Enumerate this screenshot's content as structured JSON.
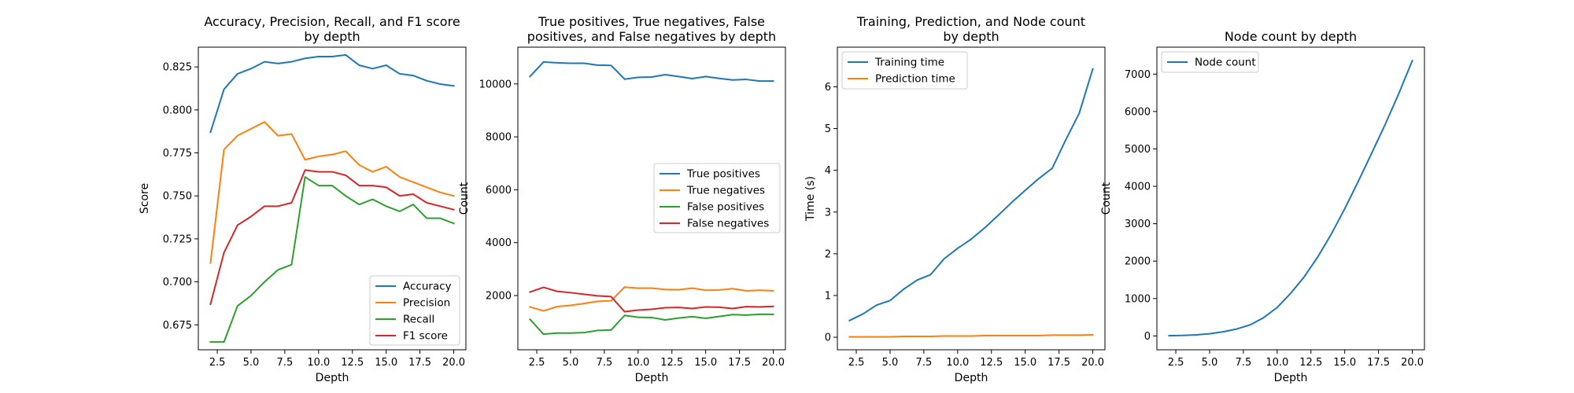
{
  "chart_data": [
    {
      "type": "line",
      "title": [
        "Accuracy, Precision, Recall, and F1 score",
        "by depth"
      ],
      "xlabel": "Depth",
      "ylabel": "Score",
      "xlim": [
        1.1,
        20.9
      ],
      "ylim": [
        0.6605,
        0.8365
      ],
      "xticks": [
        2.5,
        5.0,
        7.5,
        10.0,
        12.5,
        15.0,
        17.5,
        20.0
      ],
      "xtick_labels": [
        "2.5",
        "5.0",
        "7.5",
        "10.0",
        "12.5",
        "15.0",
        "17.5",
        "20.0"
      ],
      "yticks": [
        0.675,
        0.7,
        0.725,
        0.75,
        0.775,
        0.8,
        0.825
      ],
      "ytick_labels": [
        "0.675",
        "0.700",
        "0.725",
        "0.750",
        "0.775",
        "0.800",
        "0.825"
      ],
      "legend_position": "lower-right",
      "x": [
        2,
        3,
        4,
        5,
        6,
        7,
        8,
        9,
        10,
        11,
        12,
        13,
        14,
        15,
        16,
        17,
        18,
        19,
        20
      ],
      "series": [
        {
          "name": "Accuracy",
          "color": "#1f77b4",
          "values": [
            0.787,
            0.812,
            0.821,
            0.824,
            0.828,
            0.827,
            0.828,
            0.83,
            0.831,
            0.831,
            0.832,
            0.826,
            0.824,
            0.826,
            0.821,
            0.82,
            0.817,
            0.815,
            0.814
          ]
        },
        {
          "name": "Precision",
          "color": "#ff7f0e",
          "values": [
            0.711,
            0.777,
            0.785,
            0.789,
            0.793,
            0.785,
            0.786,
            0.771,
            0.773,
            0.774,
            0.776,
            0.768,
            0.764,
            0.767,
            0.761,
            0.758,
            0.755,
            0.752,
            0.75
          ]
        },
        {
          "name": "Recall",
          "color": "#2ca02c",
          "values": [
            0.665,
            0.665,
            0.686,
            0.692,
            0.7,
            0.707,
            0.71,
            0.761,
            0.756,
            0.756,
            0.75,
            0.745,
            0.748,
            0.744,
            0.741,
            0.745,
            0.737,
            0.737,
            0.734
          ]
        },
        {
          "name": "F1 score",
          "color": "#d62728",
          "values": [
            0.687,
            0.717,
            0.733,
            0.738,
            0.744,
            0.744,
            0.746,
            0.765,
            0.764,
            0.764,
            0.762,
            0.756,
            0.756,
            0.755,
            0.75,
            0.751,
            0.746,
            0.744,
            0.742
          ]
        }
      ]
    },
    {
      "type": "line",
      "title": [
        "True positives, True negatives, False",
        "positives, and False negatives by depth"
      ],
      "xlabel": "Depth",
      "ylabel": "Count",
      "xlim": [
        1.1,
        20.9
      ],
      "ylim": [
        -50,
        11390
      ],
      "xticks": [
        2.5,
        5.0,
        7.5,
        10.0,
        12.5,
        15.0,
        17.5,
        20.0
      ],
      "xtick_labels": [
        "2.5",
        "5.0",
        "7.5",
        "10.0",
        "12.5",
        "15.0",
        "17.5",
        "20.0"
      ],
      "yticks": [
        2000,
        4000,
        6000,
        8000,
        10000
      ],
      "ytick_labels": [
        "2000",
        "4000",
        "6000",
        "8000",
        "10000"
      ],
      "legend_position": "center-right",
      "x": [
        2,
        3,
        4,
        5,
        6,
        7,
        8,
        9,
        10,
        11,
        12,
        13,
        14,
        15,
        16,
        17,
        18,
        19,
        20
      ],
      "series": [
        {
          "name": "True positives",
          "color": "#1f77b4",
          "values": [
            10280,
            10830,
            10800,
            10780,
            10780,
            10710,
            10700,
            10180,
            10250,
            10260,
            10350,
            10280,
            10200,
            10280,
            10210,
            10150,
            10170,
            10110,
            10110
          ]
        },
        {
          "name": "True negatives",
          "color": "#ff7f0e",
          "values": [
            1570,
            1420,
            1580,
            1630,
            1700,
            1780,
            1800,
            2320,
            2280,
            2280,
            2230,
            2220,
            2280,
            2200,
            2210,
            2260,
            2180,
            2200,
            2180
          ]
        },
        {
          "name": "False positives",
          "color": "#2ca02c",
          "values": [
            1100,
            540,
            580,
            580,
            600,
            680,
            700,
            1250,
            1180,
            1170,
            1080,
            1150,
            1200,
            1140,
            1210,
            1280,
            1260,
            1290,
            1290
          ]
        },
        {
          "name": "False negatives",
          "color": "#d62728",
          "values": [
            2130,
            2310,
            2160,
            2110,
            2050,
            1990,
            1960,
            1390,
            1450,
            1480,
            1540,
            1550,
            1510,
            1570,
            1560,
            1510,
            1580,
            1570,
            1590
          ]
        }
      ]
    },
    {
      "type": "line",
      "title": [
        "Training, Prediction, and Node count",
        "by depth"
      ],
      "xlabel": "Depth",
      "ylabel": "Time (s)",
      "xlim": [
        1.1,
        20.9
      ],
      "ylim": [
        -0.3,
        6.95
      ],
      "xticks": [
        2.5,
        5.0,
        7.5,
        10.0,
        12.5,
        15.0,
        17.5,
        20.0
      ],
      "xtick_labels": [
        "2.5",
        "5.0",
        "7.5",
        "10.0",
        "12.5",
        "15.0",
        "17.5",
        "20.0"
      ],
      "yticks": [
        0,
        1,
        2,
        3,
        4,
        5,
        6
      ],
      "ytick_labels": [
        "0",
        "1",
        "2",
        "3",
        "4",
        "5",
        "6"
      ],
      "legend_position": "top-left",
      "x": [
        2,
        3,
        4,
        5,
        6,
        7,
        8,
        9,
        10,
        11,
        12,
        13,
        14,
        15,
        16,
        17,
        18,
        19,
        20
      ],
      "series": [
        {
          "name": "Training time",
          "color": "#1f77b4",
          "values": [
            0.4,
            0.56,
            0.77,
            0.88,
            1.15,
            1.37,
            1.5,
            1.88,
            2.13,
            2.35,
            2.62,
            2.92,
            3.23,
            3.52,
            3.8,
            4.05,
            4.73,
            5.37,
            6.43
          ]
        },
        {
          "name": "Prediction time",
          "color": "#ff7f0e",
          "values": [
            0.01,
            0.01,
            0.01,
            0.01,
            0.02,
            0.02,
            0.02,
            0.03,
            0.03,
            0.03,
            0.04,
            0.04,
            0.04,
            0.04,
            0.04,
            0.05,
            0.05,
            0.05,
            0.06
          ]
        }
      ]
    },
    {
      "type": "line",
      "title": [
        "Node count by depth"
      ],
      "xlabel": "Depth",
      "ylabel": "Count",
      "xlim": [
        1.1,
        20.9
      ],
      "ylim": [
        -370,
        7720
      ],
      "xticks": [
        2.5,
        5.0,
        7.5,
        10.0,
        12.5,
        15.0,
        17.5,
        20.0
      ],
      "xtick_labels": [
        "2.5",
        "5.0",
        "7.5",
        "10.0",
        "12.5",
        "15.0",
        "17.5",
        "20.0"
      ],
      "yticks": [
        0,
        1000,
        2000,
        3000,
        4000,
        5000,
        6000,
        7000
      ],
      "ytick_labels": [
        "0",
        "1000",
        "2000",
        "3000",
        "4000",
        "5000",
        "6000",
        "7000"
      ],
      "legend_position": "top-left",
      "x": [
        2,
        3,
        4,
        5,
        6,
        7,
        8,
        9,
        10,
        11,
        12,
        13,
        14,
        15,
        16,
        17,
        18,
        19,
        20
      ],
      "series": [
        {
          "name": "Node count",
          "color": "#1f77b4",
          "values": [
            5,
            13,
            29,
            58,
            110,
            185,
            295,
            490,
            760,
            1140,
            1580,
            2110,
            2720,
            3400,
            4130,
            4890,
            5660,
            6480,
            7360
          ]
        }
      ]
    }
  ]
}
